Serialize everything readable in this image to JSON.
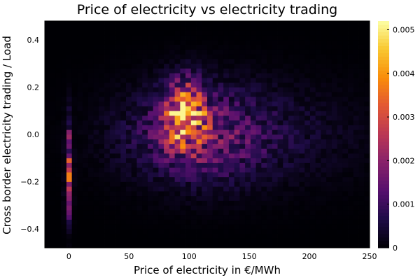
{
  "chart_data": {
    "type": "heatmap",
    "title": "Price of electricity vs electricity trading",
    "xlabel": "Price of electricity in €/MWh",
    "ylabel": "Cross border electricity trading / Load",
    "xlim": [
      -20,
      250
    ],
    "ylim": [
      -0.48,
      0.48
    ],
    "x_ticks": [
      {
        "value": 0,
        "label": "0"
      },
      {
        "value": 50,
        "label": "50"
      },
      {
        "value": 100,
        "label": "100"
      },
      {
        "value": 150,
        "label": "150"
      },
      {
        "value": 200,
        "label": "200"
      },
      {
        "value": 250,
        "label": "250"
      }
    ],
    "y_ticks": [
      {
        "value": -0.4,
        "label": "−0.4"
      },
      {
        "value": -0.2,
        "label": "−0.2"
      },
      {
        "value": 0.0,
        "label": "0.0"
      },
      {
        "value": 0.2,
        "label": "0.2"
      },
      {
        "value": 0.4,
        "label": "0.4"
      }
    ],
    "colorbar": {
      "colormap": "inferno",
      "range": [
        0,
        0.0052
      ],
      "ticks": [
        {
          "value": 0,
          "label": "0"
        },
        {
          "value": 0.001,
          "label": "0.001"
        },
        {
          "value": 0.002,
          "label": "0.002"
        },
        {
          "value": 0.003,
          "label": "0.003"
        },
        {
          "value": 0.004,
          "label": "0.004"
        },
        {
          "value": 0.005,
          "label": "0.005"
        }
      ]
    },
    "grid": false,
    "cell_density_peak": 0.0051,
    "density_components": [
      {
        "x": 97,
        "y": 0.09,
        "sx": 11,
        "sy": 0.09,
        "amp": 0.0038
      },
      {
        "x": 108,
        "y": 0.0,
        "sx": 38,
        "sy": 0.13,
        "amp": 0.0013
      },
      {
        "x": 0,
        "y": -0.13,
        "sx": 1.8,
        "sy": 0.12,
        "amp": 0.0022
      },
      {
        "x": 0,
        "y": -0.28,
        "sx": 1.8,
        "sy": 0.07,
        "amp": 0.001
      },
      {
        "x": 150,
        "y": 0.0,
        "sx": 70,
        "sy": 0.15,
        "amp": 0.0004
      }
    ]
  }
}
